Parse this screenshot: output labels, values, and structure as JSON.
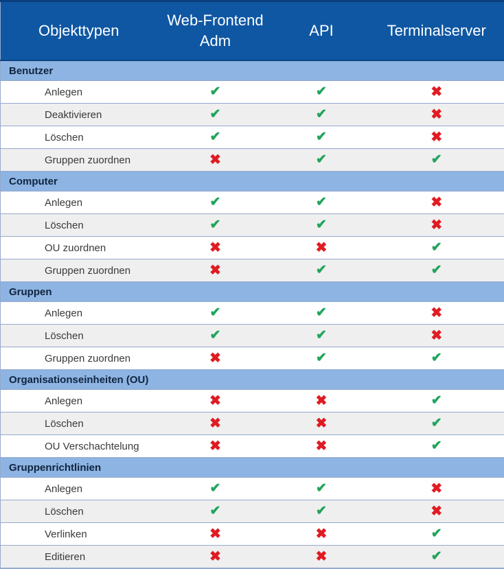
{
  "table": {
    "columns": [
      "Objekttypen",
      "Web-Frontend Adm",
      "API",
      "Terminalserver"
    ],
    "sections": [
      {
        "name": "Benutzer",
        "rows": [
          {
            "label": "Anlegen",
            "values": [
              "check",
              "check",
              "cross"
            ]
          },
          {
            "label": "Deaktivieren",
            "values": [
              "check",
              "check",
              "cross"
            ]
          },
          {
            "label": "Löschen",
            "values": [
              "check",
              "check",
              "cross"
            ]
          },
          {
            "label": "Gruppen zuordnen",
            "values": [
              "cross",
              "check",
              "check"
            ]
          }
        ]
      },
      {
        "name": "Computer",
        "rows": [
          {
            "label": "Anlegen",
            "values": [
              "check",
              "check",
              "cross"
            ]
          },
          {
            "label": "Löschen",
            "values": [
              "check",
              "check",
              "cross"
            ]
          },
          {
            "label": "OU zuordnen",
            "values": [
              "cross",
              "cross",
              "check"
            ]
          },
          {
            "label": "Gruppen zuordnen",
            "values": [
              "cross",
              "check",
              "check"
            ]
          }
        ]
      },
      {
        "name": "Gruppen",
        "rows": [
          {
            "label": "Anlegen",
            "values": [
              "check",
              "check",
              "cross"
            ]
          },
          {
            "label": "Löschen",
            "values": [
              "check",
              "check",
              "cross"
            ]
          },
          {
            "label": "Gruppen zuordnen",
            "values": [
              "cross",
              "check",
              "check"
            ]
          }
        ]
      },
      {
        "name": "Organisationseinheiten (OU)",
        "rows": [
          {
            "label": "Anlegen",
            "values": [
              "cross",
              "cross",
              "check"
            ]
          },
          {
            "label": "Löschen",
            "values": [
              "cross",
              "cross",
              "check"
            ]
          },
          {
            "label": "OU Verschachtelung",
            "values": [
              "cross",
              "cross",
              "check"
            ]
          }
        ]
      },
      {
        "name": "Gruppenrichtlinien",
        "rows": [
          {
            "label": "Anlegen",
            "values": [
              "check",
              "check",
              "cross"
            ]
          },
          {
            "label": "Löschen",
            "values": [
              "check",
              "check",
              "cross"
            ]
          },
          {
            "label": "Verlinken",
            "values": [
              "cross",
              "cross",
              "check"
            ]
          },
          {
            "label": "Editieren",
            "values": [
              "cross",
              "cross",
              "check"
            ]
          }
        ]
      }
    ],
    "icons": {
      "check": "✔",
      "cross": "✖"
    },
    "icon_names": {
      "check": "checkmark-icon",
      "cross": "cross-icon"
    }
  },
  "colors": {
    "header_bg": "#0F57A3",
    "header_text": "#FFFFFF",
    "section_bg": "#8DB4E2",
    "section_text": "#10243E",
    "row_alt_bg": "#EFEFEF",
    "grid_line": "#95A9CD",
    "check_color": "#21A45B",
    "cross_color": "#E01B22"
  }
}
